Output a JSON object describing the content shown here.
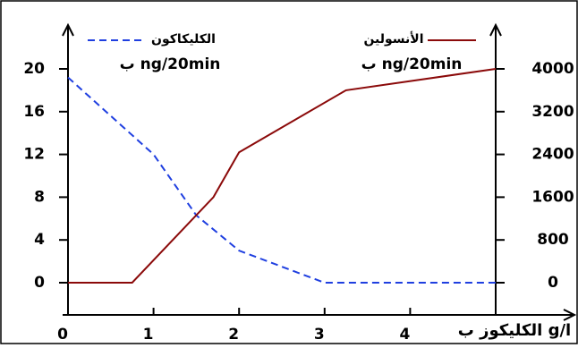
{
  "chart_data": {
    "type": "line",
    "x_label": "الكليكوز ب g/l",
    "xlim": [
      0,
      5
    ],
    "xticks": [
      0,
      1,
      2,
      3,
      4
    ],
    "ylim": [
      0,
      20
    ],
    "yticks": [
      0,
      4,
      8,
      12,
      16,
      20
    ],
    "y2lim": [
      0,
      4000
    ],
    "y2ticks": [
      0,
      800,
      1600,
      2400,
      3200,
      4000
    ],
    "y_unit": "ب ng/20min",
    "y2_unit": "ب ng/20min",
    "series": [
      {
        "name": "الكليكاكون",
        "color": "#1f3fe0",
        "dashed": true,
        "x": [
          0,
          1,
          1.5,
          2,
          3,
          5
        ],
        "values": [
          19.2,
          12,
          6.3,
          3,
          0,
          0
        ]
      },
      {
        "name": "الأنسولين",
        "color": "#8b0a0a",
        "dashed": false,
        "axis": "y2",
        "x": [
          0,
          0.75,
          1.7,
          2,
          3.25,
          5
        ],
        "values": [
          0,
          0,
          1600,
          2440,
          3600,
          4000
        ]
      }
    ]
  }
}
